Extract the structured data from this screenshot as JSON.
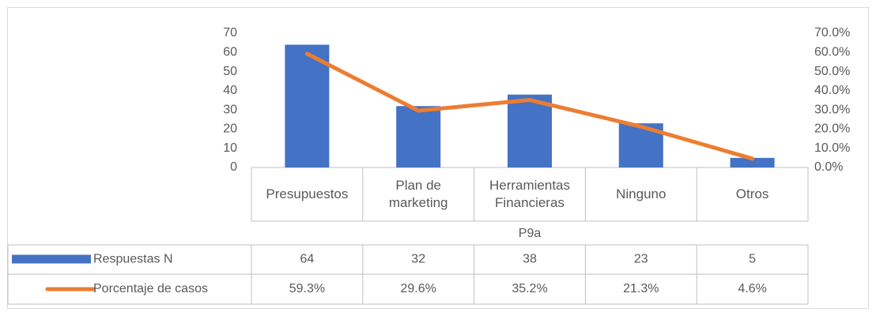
{
  "chart_data": {
    "type": "bar",
    "x_label": "P9a",
    "categories": [
      "Presupuestos",
      "Plan de marketing",
      "Herramientas Financieras",
      "Ninguno",
      "Otros"
    ],
    "series": [
      {
        "name": "Respuestas N",
        "type": "bar",
        "color": "#4472c4",
        "values": [
          64,
          32,
          38,
          23,
          5
        ]
      },
      {
        "name": "Porcentaje de casos",
        "type": "line",
        "axis": "y2",
        "color": "#ed7d31",
        "values": [
          59.3,
          29.6,
          35.2,
          21.3,
          4.6
        ],
        "value_labels": [
          "59.3%",
          "29.6%",
          "35.2%",
          "21.3%",
          "4.6%"
        ]
      }
    ],
    "ylim": [
      0,
      70
    ],
    "yticks": [
      0,
      10,
      20,
      30,
      40,
      50,
      60,
      70
    ],
    "y2lim": [
      0,
      70
    ],
    "y2ticks": [
      {
        "value": 0,
        "label": "0.0%"
      },
      {
        "value": 10,
        "label": "10.0%"
      },
      {
        "value": 20,
        "label": "20.0%"
      },
      {
        "value": 30,
        "label": "30.0%"
      },
      {
        "value": 40,
        "label": "40.0%"
      },
      {
        "value": 50,
        "label": "50.0%"
      },
      {
        "value": 60,
        "label": "60.0%"
      },
      {
        "value": 70,
        "label": "70.0%"
      }
    ]
  }
}
